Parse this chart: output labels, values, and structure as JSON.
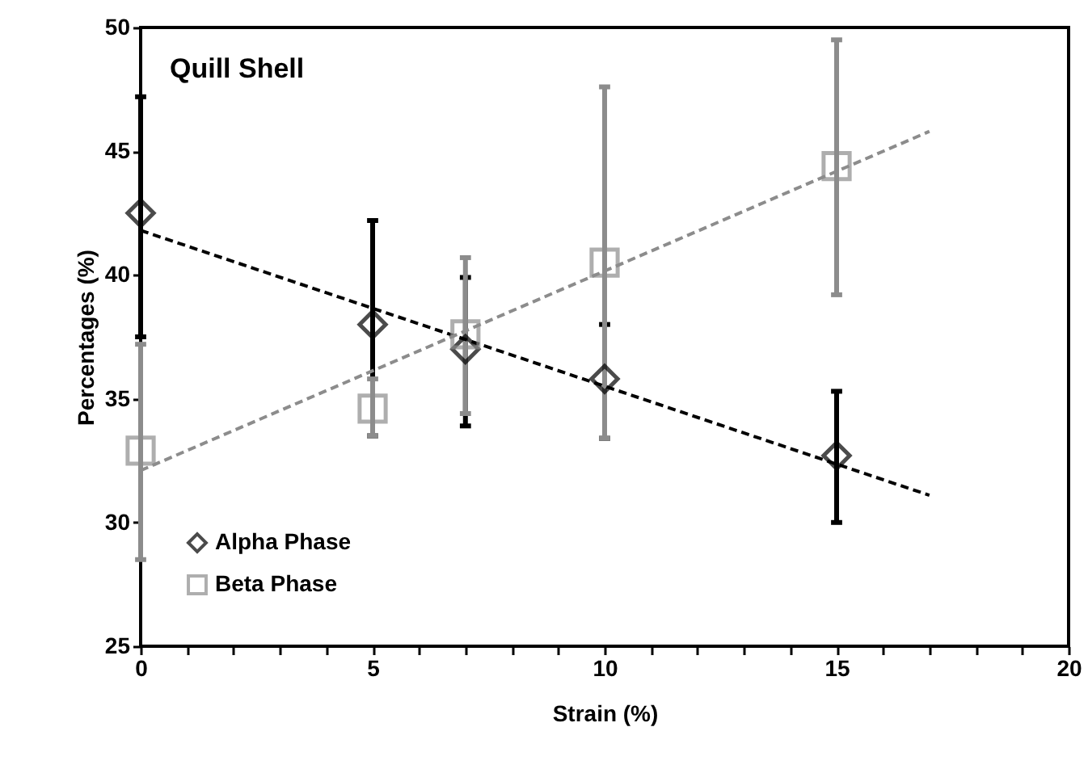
{
  "chart_data": {
    "type": "scatter",
    "xlabel": "Strain (%)",
    "ylabel": "Percentages (%)",
    "annotations": [
      "Quill Shell"
    ],
    "xlim": [
      0,
      20
    ],
    "xticks": [
      0,
      {
        "value": 1,
        "label": null
      },
      {
        "value": 2,
        "label": null
      },
      {
        "value": 3,
        "label": null
      },
      {
        "value": 4,
        "label": null
      },
      5,
      {
        "value": 6,
        "label": null
      },
      {
        "value": 7,
        "label": null
      },
      {
        "value": 8,
        "label": null
      },
      {
        "value": 9,
        "label": null
      },
      10,
      {
        "value": 11,
        "label": null
      },
      {
        "value": 12,
        "label": null
      },
      {
        "value": 13,
        "label": null
      },
      {
        "value": 14,
        "label": null
      },
      15,
      {
        "value": 16,
        "label": null
      },
      {
        "value": 17,
        "label": null
      },
      {
        "value": 18,
        "label": null
      },
      {
        "value": 19,
        "label": null
      },
      20
    ],
    "ylim": [
      25,
      50
    ],
    "yticks": [
      25,
      30,
      35,
      40,
      45,
      50
    ],
    "grid": false,
    "legend": "bottom left",
    "series": [
      {
        "name": "Alpha Phase",
        "type": "scatter",
        "marker": "diamond",
        "color": "#000000",
        "x": [
          0,
          5,
          7,
          10,
          15
        ],
        "values": [
          42.5,
          38.0,
          37.0,
          35.8,
          32.7
        ],
        "errors": [
          [
            37.5,
            47.2
          ],
          [
            33.5,
            42.2
          ],
          [
            33.9,
            39.9
          ],
          [
            33.4,
            38.0
          ],
          [
            30.0,
            35.3
          ]
        ]
      },
      {
        "name": "Beta Phase",
        "type": "scatter",
        "marker": "square",
        "color": "#8c8c8c",
        "x": [
          0,
          5,
          7,
          10,
          15
        ],
        "values": [
          32.9,
          34.6,
          37.6,
          40.5,
          44.4
        ],
        "errors": [
          [
            28.5,
            37.2
          ],
          [
            33.5,
            35.8
          ],
          [
            34.4,
            40.7
          ],
          [
            33.4,
            47.6
          ],
          [
            39.2,
            49.5
          ]
        ]
      },
      {
        "type": "line",
        "line_style": "dashed",
        "color": "#000000",
        "x": [
          0,
          17
        ],
        "values": [
          41.8,
          31.1
        ]
      },
      {
        "type": "line",
        "line_style": "dashed",
        "color": "#8c8c8c",
        "x": [
          0,
          17
        ],
        "values": [
          32.1,
          45.8
        ]
      }
    ]
  }
}
